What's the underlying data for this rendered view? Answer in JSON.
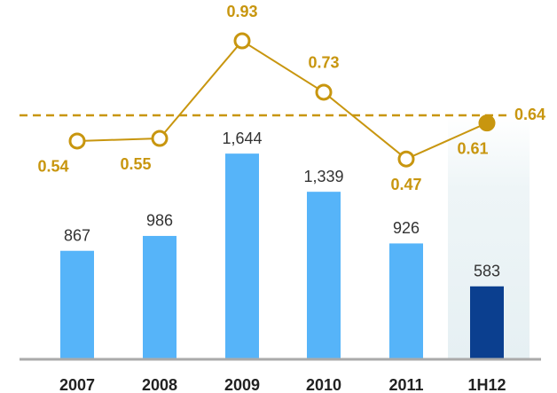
{
  "chart_data": {
    "type": "bar",
    "categories": [
      "2007",
      "2008",
      "2009",
      "2010",
      "2011",
      "1H12"
    ],
    "series": [
      {
        "type": "bar",
        "colors": [
          "#56b4f9",
          "#56b4f9",
          "#56b4f9",
          "#56b4f9",
          "#56b4f9",
          "#0b3f8f"
        ],
        "values": [
          867,
          986,
          1644,
          1339,
          926,
          583
        ],
        "value_labels": [
          "867",
          "986",
          "1,644",
          "1,339",
          "926",
          "583"
        ]
      },
      {
        "type": "line",
        "axis": "y2",
        "color": "#c8960f",
        "values": [
          0.54,
          0.55,
          0.93,
          0.73,
          0.47,
          0.61
        ],
        "filled": [
          false,
          false,
          false,
          false,
          false,
          true
        ]
      }
    ],
    "reference_line": {
      "value": 0.64,
      "axis": "y2",
      "color": "#c8960f",
      "style": "dashed"
    },
    "ylim": [
      0,
      2730
    ],
    "y2lim": [
      -0.31,
      1.02
    ]
  }
}
